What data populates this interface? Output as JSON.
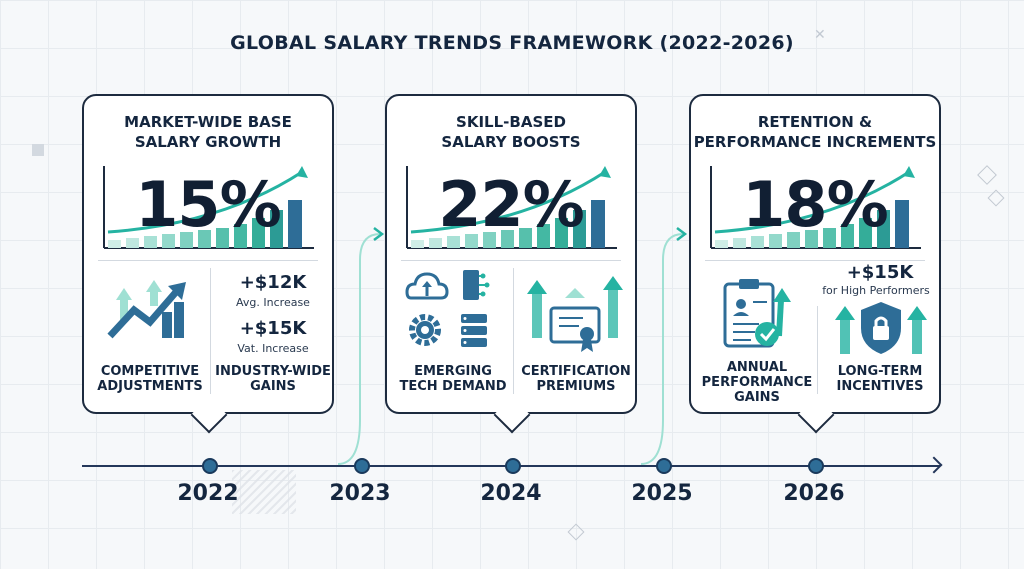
{
  "title": "GLOBAL SALARY TRENDS FRAMEWORK (2022-2026)",
  "colors": {
    "navy": "#14263f",
    "teal": "#25b3a2",
    "blue": "#2e6d97",
    "light_teal": "#bfe8e0"
  },
  "cards": [
    {
      "title": "MARKET-WIDE BASE SALARY GROWTH",
      "title_lines": [
        "MARKET-WIDE BASE",
        "SALARY GROWTH"
      ],
      "percent": "15%",
      "left_label": [
        "COMPETITIVE",
        "ADJUSTMENTS"
      ],
      "left_icon": "growth-arrow-chart-icon",
      "stats": [
        {
          "value": "+$12K",
          "caption": "Avg. Increase"
        },
        {
          "value": "+$15K",
          "caption": "Vat. Increase"
        }
      ],
      "right_label": [
        "INDUSTRY-WIDE",
        "GAINS"
      ]
    },
    {
      "title": "SKILL-BASED SALARY BOOSTS",
      "title_lines": [
        "SKILL-BASED",
        "SALARY BOOSTS"
      ],
      "percent": "22%",
      "left_label": [
        "EMERGING",
        "TECH DEMAND"
      ],
      "left_icon": "cloud-chip-gear-server-icons",
      "right_label": [
        "CERTIFICATION",
        "PREMIUMS"
      ],
      "right_icon": "certificate-arrows-icon"
    },
    {
      "title": "RETENTION & PERFORMANCE INCREMENTS",
      "title_lines": [
        "RETENTION &",
        "PERFORMANCE INCREMENTS"
      ],
      "percent": "18%",
      "stat": {
        "value": "+$15K",
        "caption": "for High Performers"
      },
      "left_label": [
        "ANNUAL",
        "PERFORMANCE",
        "GAINS"
      ],
      "left_icon": "clipboard-check-icon",
      "right_label": [
        "LONG-TERM",
        "INCENTIVES"
      ],
      "right_icon": "shield-lock-icon"
    }
  ],
  "timeline": {
    "years": [
      "2022",
      "2023",
      "2024",
      "2025",
      "2026"
    ]
  }
}
